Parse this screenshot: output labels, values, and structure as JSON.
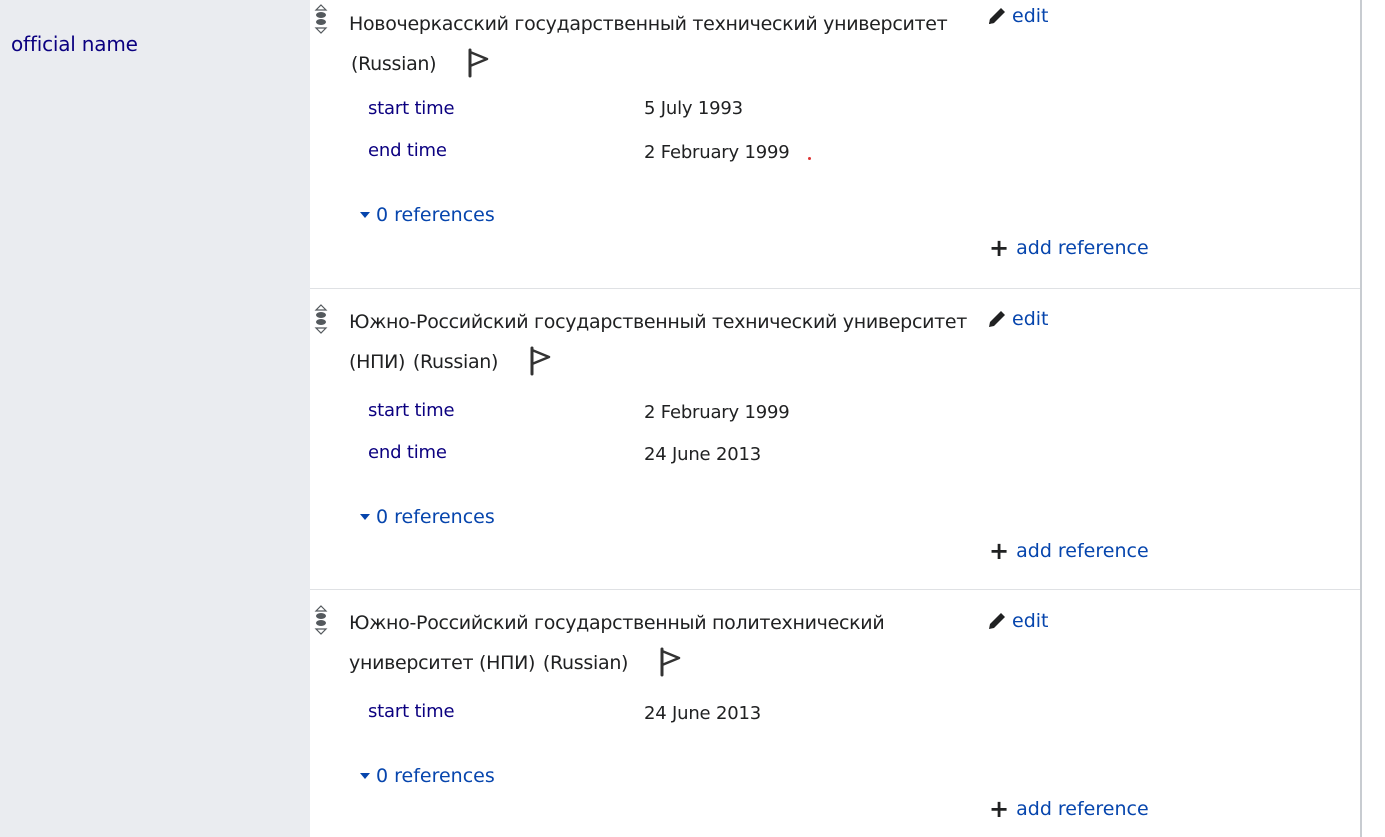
{
  "property": {
    "label": "official name"
  },
  "statements": [
    {
      "value_text": "Новочеркасский государственный технический университет",
      "language": "(Russian)",
      "edit_label": "edit",
      "qualifiers": [
        {
          "name": "start time",
          "value": "5 July 1993"
        },
        {
          "name": "end time",
          "value": "2 February 1999"
        }
      ],
      "references_label": "0 references",
      "add_reference_label": "add reference"
    },
    {
      "value_text": "Южно-Российский государственный технический университет (НПИ)",
      "language": "(Russian)",
      "edit_label": "edit",
      "qualifiers": [
        {
          "name": "start time",
          "value": "2 February 1999"
        },
        {
          "name": "end time",
          "value": "24 June 2013"
        }
      ],
      "references_label": "0 references",
      "add_reference_label": "add reference"
    },
    {
      "value_text": "Южно-Российский государственный политехнический университет (НПИ)",
      "language": "(Russian)",
      "edit_label": "edit",
      "qualifiers": [
        {
          "name": "start time",
          "value": "24 June 2013"
        }
      ],
      "references_label": "0 references",
      "add_reference_label": "add reference"
    }
  ],
  "icons": {
    "rank": "rank-selector-icon",
    "flag": "flag-icon",
    "edit": "pencil-icon",
    "toggle": "caret-down-icon",
    "add": "plus-icon"
  },
  "colors": {
    "link": "#0645ad",
    "label": "#0b0080",
    "sidebar_bg": "#eaecf0"
  }
}
